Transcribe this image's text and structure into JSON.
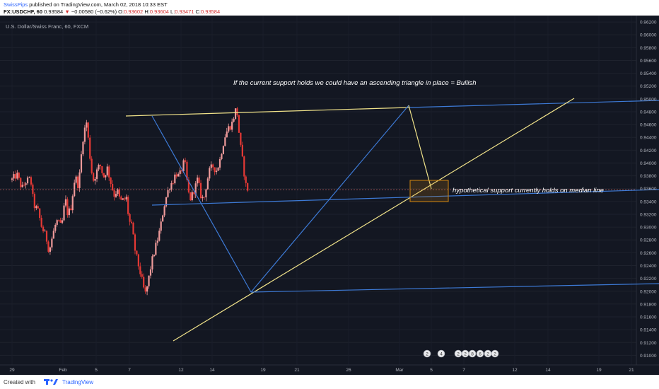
{
  "header": {
    "author": "SwissPips",
    "published": "published on TradingView.com, March 02, 2018 10:33 EST",
    "symbol": "FX:USDCHF, 60",
    "last": "0.93584",
    "change_arrow": "▼",
    "change": "−0.00580 (−0.62%)",
    "open_label": "O:",
    "open": "0.93602",
    "high_label": "H:",
    "high": "0.93604",
    "low_label": "L:",
    "low": "0.93471",
    "close_label": "C:",
    "close": "0.93584"
  },
  "footer": {
    "created_with": "Created with",
    "brand": "TradingView"
  },
  "colors": {
    "background": "#131722",
    "bullish": "#ef9a9a",
    "bearish": "#e53935",
    "trendline_blue": "#3d7ad6",
    "trendline_yellow": "#f1e38a",
    "box": "#d4870f",
    "price_line": "#e06b6b"
  },
  "chart_data": {
    "type": "candlestick",
    "title": "U.S. Dollar/Swiss Franc, 60, FXCM",
    "ylim": [
      0.9085,
      0.963
    ],
    "y_ticks": [
      "0.96200",
      "0.96000",
      "0.95800",
      "0.95600",
      "0.95400",
      "0.95200",
      "0.95000",
      "0.94800",
      "0.94600",
      "0.94400",
      "0.94200",
      "0.94000",
      "0.93800",
      "0.93600",
      "0.93400",
      "0.93200",
      "0.93000",
      "0.92800",
      "0.92600",
      "0.92400",
      "0.92200",
      "0.92000",
      "0.91800",
      "0.91600",
      "0.91400",
      "0.91200",
      "0.91000"
    ],
    "x_ticks": [
      "29",
      "Feb",
      "5",
      "7",
      "12",
      "14",
      "19",
      "21",
      "26",
      "Mar",
      "5",
      "7",
      "12",
      "14",
      "19",
      "21"
    ],
    "current_price": "0.93584",
    "price_path": [
      {
        "d": 0,
        "p": 0.9374
      },
      {
        "d": 0.8,
        "p": 0.9382
      },
      {
        "d": 1.6,
        "p": 0.936
      },
      {
        "d": 2.3,
        "p": 0.9372
      },
      {
        "d": 3.0,
        "p": 0.9375
      },
      {
        "d": 3.5,
        "p": 0.9335
      },
      {
        "d": 4.2,
        "p": 0.9325
      },
      {
        "d": 4.8,
        "p": 0.93
      },
      {
        "d": 5.5,
        "p": 0.9285
      },
      {
        "d": 6.0,
        "p": 0.9262
      },
      {
        "d": 6.5,
        "p": 0.9285
      },
      {
        "d": 7.2,
        "p": 0.931
      },
      {
        "d": 8.0,
        "p": 0.93
      },
      {
        "d": 8.6,
        "p": 0.9345
      },
      {
        "d": 9.0,
        "p": 0.932
      },
      {
        "d": 9.5,
        "p": 0.933
      },
      {
        "d": 10.2,
        "p": 0.938
      },
      {
        "d": 10.7,
        "p": 0.9365
      },
      {
        "d": 11.1,
        "p": 0.9395
      },
      {
        "d": 11.3,
        "p": 0.943
      },
      {
        "d": 11.7,
        "p": 0.945
      },
      {
        "d": 12.0,
        "p": 0.9467
      },
      {
        "d": 12.4,
        "p": 0.943
      },
      {
        "d": 12.8,
        "p": 0.939
      },
      {
        "d": 13.2,
        "p": 0.9372
      },
      {
        "d": 13.6,
        "p": 0.9385
      },
      {
        "d": 14.2,
        "p": 0.9398
      },
      {
        "d": 14.8,
        "p": 0.9378
      },
      {
        "d": 15.4,
        "p": 0.9392
      },
      {
        "d": 16.0,
        "p": 0.9368
      },
      {
        "d": 16.5,
        "p": 0.935
      },
      {
        "d": 17.0,
        "p": 0.9358
      },
      {
        "d": 17.5,
        "p": 0.934
      },
      {
        "d": 18.0,
        "p": 0.9342
      },
      {
        "d": 18.5,
        "p": 0.9345
      },
      {
        "d": 18.9,
        "p": 0.931
      },
      {
        "d": 19.4,
        "p": 0.93
      },
      {
        "d": 19.8,
        "p": 0.9268
      },
      {
        "d": 20.2,
        "p": 0.925
      },
      {
        "d": 20.7,
        "p": 0.923
      },
      {
        "d": 21.3,
        "p": 0.9203
      },
      {
        "d": 21.6,
        "p": 0.9195
      },
      {
        "d": 22.0,
        "p": 0.9215
      },
      {
        "d": 22.5,
        "p": 0.9242
      },
      {
        "d": 23.0,
        "p": 0.9262
      },
      {
        "d": 23.5,
        "p": 0.928
      },
      {
        "d": 24.0,
        "p": 0.93
      },
      {
        "d": 24.5,
        "p": 0.933
      },
      {
        "d": 25.0,
        "p": 0.935
      },
      {
        "d": 25.5,
        "p": 0.9365
      },
      {
        "d": 26.0,
        "p": 0.9372
      },
      {
        "d": 26.5,
        "p": 0.9385
      },
      {
        "d": 27.0,
        "p": 0.9378
      },
      {
        "d": 27.5,
        "p": 0.9392
      },
      {
        "d": 27.9,
        "p": 0.9405
      },
      {
        "d": 28.3,
        "p": 0.937
      },
      {
        "d": 28.7,
        "p": 0.9342
      },
      {
        "d": 29.1,
        "p": 0.935
      },
      {
        "d": 29.6,
        "p": 0.9362
      },
      {
        "d": 30.0,
        "p": 0.9375
      },
      {
        "d": 30.5,
        "p": 0.935
      },
      {
        "d": 31.0,
        "p": 0.9342
      },
      {
        "d": 31.5,
        "p": 0.9372
      },
      {
        "d": 32.0,
        "p": 0.939
      },
      {
        "d": 32.5,
        "p": 0.9395
      },
      {
        "d": 33.0,
        "p": 0.9388
      },
      {
        "d": 33.5,
        "p": 0.94
      },
      {
        "d": 34.0,
        "p": 0.9425
      },
      {
        "d": 34.5,
        "p": 0.9445
      },
      {
        "d": 35.0,
        "p": 0.9455
      },
      {
        "d": 35.5,
        "p": 0.946
      },
      {
        "d": 36.0,
        "p": 0.9478
      },
      {
        "d": 36.3,
        "p": 0.9488
      },
      {
        "d": 36.6,
        "p": 0.9455
      },
      {
        "d": 37.0,
        "p": 0.942
      },
      {
        "d": 37.4,
        "p": 0.9395
      },
      {
        "d": 37.7,
        "p": 0.9368
      },
      {
        "d": 38.0,
        "p": 0.936
      },
      {
        "d": 38.2,
        "p": 0.9358
      }
    ]
  },
  "annotations": {
    "triangle_note": "If the current support holds we could have an ascending triangle in place = Bullish",
    "support_note": "hypothetical support currently holds on median line"
  },
  "event_badges": [
    "2",
    "4",
    "2",
    "2",
    "8",
    "6",
    "2",
    "2"
  ]
}
